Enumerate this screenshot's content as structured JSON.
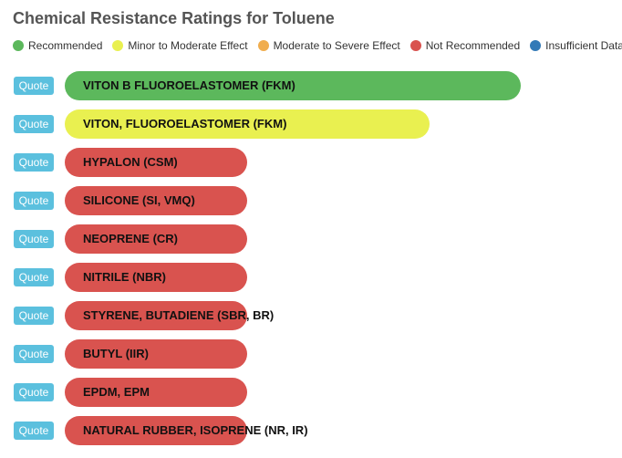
{
  "title": "Chemical Resistance Ratings for Toluene",
  "legend": [
    {
      "key": "recommended",
      "label": "Recommended",
      "color": "#5cb85c"
    },
    {
      "key": "minor",
      "label": "Minor to Moderate Effect",
      "color": "#e9f050"
    },
    {
      "key": "severe",
      "label": "Moderate to Severe Effect",
      "color": "#f0ad4e"
    },
    {
      "key": "not_recommended",
      "label": "Not Recommended",
      "color": "#d9534f"
    },
    {
      "key": "insufficient",
      "label": "Insufficient Data",
      "color": "#337ab7"
    }
  ],
  "chart_data": {
    "type": "bar",
    "orientation": "horizontal",
    "title": "Chemical Resistance Ratings for Toluene",
    "categories": [
      "VITON B FLUOROELASTOMER (FKM)",
      "VITON, FLUOROELASTOMER (FKM)",
      "HYPALON (CSM)",
      "SILICONE (SI, VMQ)",
      "NEOPRENE (CR)",
      "NITRILE (NBR)",
      "STYRENE, BUTADIENE (SBR, BR)",
      "BUTYL (IIR)",
      "EPDM, EPM",
      "NATURAL RUBBER, ISOPRENE (NR, IR)"
    ],
    "values": [
      5,
      4,
      2,
      2,
      2,
      2,
      2,
      2,
      2,
      2
    ],
    "ratings": [
      "Recommended",
      "Minor to Moderate Effect",
      "Not Recommended",
      "Not Recommended",
      "Not Recommended",
      "Not Recommended",
      "Not Recommended",
      "Not Recommended",
      "Not Recommended",
      "Not Recommended"
    ],
    "colors": [
      "#5cb85c",
      "#e9f050",
      "#d9534f",
      "#d9534f",
      "#d9534f",
      "#d9534f",
      "#d9534f",
      "#d9534f",
      "#d9534f",
      "#d9534f"
    ],
    "xlim": [
      0,
      5
    ],
    "grid": false,
    "legend_position": "top"
  },
  "quote_label": "Quote"
}
